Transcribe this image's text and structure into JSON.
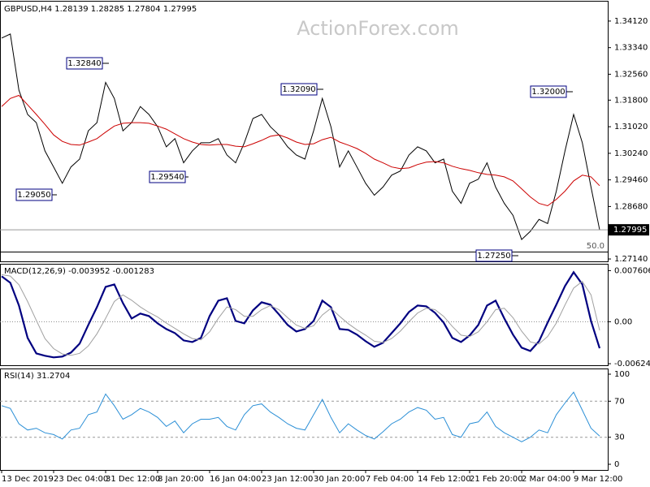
{
  "chart_data": [
    {
      "type": "line",
      "title": "GBPUSD,H4  1.28139 1.28285 1.27804 1.27995",
      "watermark": "ActionForex.com",
      "ylim": [
        1.2707,
        1.3469
      ],
      "yticks": [
        {
          "value": 1.3412,
          "label": "1.34120"
        },
        {
          "value": 1.3334,
          "label": "1.33340"
        },
        {
          "value": 1.3256,
          "label": "1.32560"
        },
        {
          "value": 1.318,
          "label": "1.31800"
        },
        {
          "value": 1.3102,
          "label": "1.31020"
        },
        {
          "value": 1.3024,
          "label": "1.30240"
        },
        {
          "value": 1.2946,
          "label": "1.29460"
        },
        {
          "value": 1.2868,
          "label": "1.28680"
        },
        {
          "value": 1.2714,
          "label": "1.27140"
        }
      ],
      "annotations": [
        "1.32840",
        "1.29050",
        "1.29540",
        "1.32090",
        "1.27250",
        "1.32000"
      ],
      "fib_label": "50.0",
      "series": [
        {
          "name": "GBPUSD",
          "color": "#000000",
          "values": [
            1.3362,
            1.3374,
            1.3209,
            1.3138,
            1.3114,
            1.3031,
            1.2984,
            1.2936,
            1.2984,
            1.3007,
            1.309,
            1.3114,
            1.3232,
            1.3185,
            1.309,
            1.3114,
            1.3161,
            1.3138,
            1.3102,
            1.3043,
            1.3067,
            1.2996,
            1.3031,
            1.3055,
            1.3055,
            1.3067,
            1.3019,
            1.2996,
            1.3055,
            1.3126,
            1.3138,
            1.3102,
            1.3078,
            1.3043,
            1.3019,
            1.3007,
            1.309,
            1.3185,
            1.3102,
            1.2984,
            1.3031,
            1.2984,
            1.2936,
            1.2901,
            1.2925,
            1.296,
            1.2972,
            1.3019,
            1.3043,
            1.3031,
            1.2996,
            1.3007,
            1.2913,
            1.2877,
            1.2936,
            1.2948,
            1.2996,
            1.2925,
            1.2877,
            1.2842,
            1.2771,
            1.2795,
            1.283,
            1.2818,
            1.2913,
            1.3031,
            1.3138,
            1.3055,
            1.2925,
            1.27995
          ]
        },
        {
          "name": "MA",
          "color": "#cc0000",
          "values": [
            1.3161,
            1.3185,
            1.3194,
            1.3166,
            1.3138,
            1.3109,
            1.3078,
            1.3059,
            1.305,
            1.3048,
            1.3057,
            1.3067,
            1.3086,
            1.3104,
            1.3112,
            1.3114,
            1.3114,
            1.3112,
            1.3104,
            1.3095,
            1.3081,
            1.3067,
            1.3057,
            1.305,
            1.3048,
            1.305,
            1.305,
            1.3045,
            1.3043,
            1.3052,
            1.3062,
            1.3074,
            1.3078,
            1.3069,
            1.3057,
            1.305,
            1.3052,
            1.3064,
            1.3071,
            1.3057,
            1.3048,
            1.3038,
            1.3024,
            1.3007,
            1.2996,
            1.2984,
            1.2979,
            1.2981,
            1.2991,
            1.2998,
            1.3,
            1.2996,
            1.2986,
            1.2979,
            1.2974,
            1.2967,
            1.2962,
            1.296,
            1.2955,
            1.2943,
            1.292,
            1.2896,
            1.2877,
            1.287,
            1.2889,
            1.2913,
            1.2943,
            1.296,
            1.2955,
            1.2929
          ]
        }
      ]
    },
    {
      "type": "line",
      "title": "MACD(12,26,9) -0.003952 -0.001283",
      "ylim": [
        -0.0066,
        0.0085
      ],
      "yticks": [
        0.007606,
        {
          "value": 0,
          "label": "0.00"
        },
        -0.006248
      ],
      "series": [
        {
          "name": "MACD",
          "color": "#000080",
          "values": [
            0.00676,
            0.00579,
            0.00241,
            -0.00241,
            -0.00471,
            -0.00507,
            -0.00531,
            -0.00519,
            -0.00459,
            -0.00326,
            -0.00048,
            0.00217,
            0.00519,
            0.00555,
            0.00278,
            0.00048,
            0.00121,
            0.00084,
            -0.00024,
            -0.00109,
            -0.00169,
            -0.00278,
            -0.00302,
            -0.00241,
            0.00084,
            0.00314,
            0.0035,
            0.00012,
            -0.00024,
            0.00169,
            0.0029,
            0.00253,
            0.00109,
            -0.00048,
            -0.00145,
            -0.00109,
            0.00012,
            0.00314,
            0.00217,
            -0.00109,
            -0.00121,
            -0.00193,
            -0.0029,
            -0.00374,
            -0.00314,
            -0.00169,
            -0.00024,
            0.00145,
            0.00241,
            0.00229,
            0.00133,
            -0.00012,
            -0.00241,
            -0.00302,
            -0.00205,
            -0.00048,
            0.00241,
            0.00314,
            0.00048,
            -0.00193,
            -0.00386,
            -0.00435,
            -0.0029,
            -0.00012,
            0.00253,
            0.00531,
            0.00736,
            0.00555,
            0.00012,
            -0.003952
          ]
        },
        {
          "name": "Signal",
          "color": "#a0a0a0",
          "values": [
            0.007,
            0.0068,
            0.0055,
            0.003,
            0.0002,
            -0.0025,
            -0.004,
            -0.0048,
            -0.005,
            -0.0047,
            -0.0036,
            -0.0018,
            0.0005,
            0.003,
            0.004,
            0.0032,
            0.0022,
            0.0014,
            0.0007,
            -0.0002,
            -0.001,
            -0.0018,
            -0.0025,
            -0.0027,
            -0.0015,
            0.0005,
            0.0022,
            0.0018,
            0.0008,
            0.0008,
            0.0018,
            0.0024,
            0.0018,
            0.0006,
            -0.0005,
            -0.001,
            -0.0006,
            0.001,
            0.002,
            0.0008,
            -0.0003,
            -0.0012,
            -0.002,
            -0.0029,
            -0.0031,
            -0.0025,
            -0.0014,
            0,
            0.0013,
            0.002,
            0.0018,
            0.0008,
            -0.0007,
            -0.002,
            -0.0022,
            -0.0015,
            0,
            0.0018,
            0.002,
            0.0006,
            -0.0014,
            -0.003,
            -0.0033,
            -0.0022,
            -0.0002,
            0.0025,
            0.005,
            0.006,
            0.004,
            -0.001283
          ]
        }
      ]
    },
    {
      "type": "line",
      "title": "RSI(14) 31.2704",
      "ylim": [
        -6.3,
        105.4
      ],
      "yticks": [
        100,
        70,
        30,
        0
      ],
      "dashed_levels": [
        70,
        30
      ],
      "categories": [
        "13 Dec 2019",
        null,
        null,
        null,
        null,
        null,
        "23 Dec 04:00",
        null,
        null,
        null,
        null,
        null,
        "31 Dec 12:00",
        null,
        null,
        null,
        null,
        null,
        "8 Jan 20:00",
        null,
        null,
        null,
        null,
        null,
        "16 Jan 04:00",
        null,
        null,
        null,
        null,
        null,
        "23 Jan 12:00",
        null,
        null,
        null,
        null,
        null,
        "30 Jan 20:00",
        null,
        null,
        null,
        null,
        null,
        "7 Feb 04:00",
        null,
        null,
        null,
        null,
        null,
        "14 Feb 12:00",
        null,
        null,
        null,
        null,
        null,
        "21 Feb 20:00",
        null,
        null,
        null,
        null,
        null,
        "2 Mar 04:00",
        null,
        null,
        null,
        null,
        null,
        "9 Mar 12:00",
        null,
        null,
        null
      ],
      "series": [
        {
          "name": "RSI",
          "color": "#2b8fd6",
          "values": [
            65,
            62,
            45,
            38,
            40,
            35,
            33,
            28,
            38,
            40,
            55,
            58,
            78,
            65,
            50,
            55,
            62,
            58,
            52,
            42,
            48,
            35,
            45,
            50,
            50,
            52,
            42,
            38,
            55,
            65,
            67,
            58,
            52,
            45,
            40,
            38,
            55,
            72,
            52,
            35,
            45,
            38,
            32,
            28,
            36,
            45,
            50,
            58,
            63,
            60,
            50,
            52,
            33,
            30,
            45,
            47,
            58,
            42,
            35,
            30,
            25,
            30,
            38,
            35,
            55,
            68,
            80,
            60,
            40,
            31.2704
          ]
        }
      ]
    }
  ]
}
